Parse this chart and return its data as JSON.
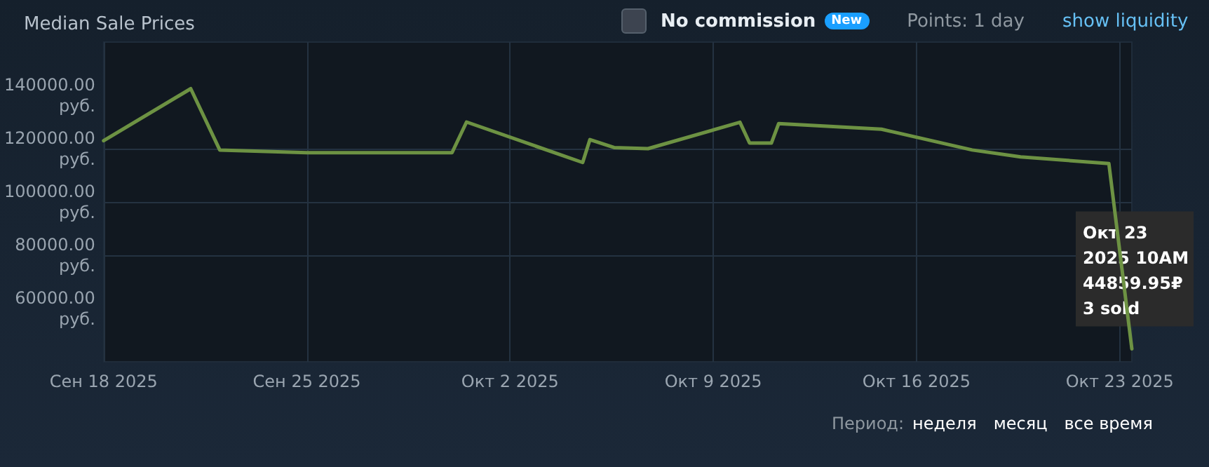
{
  "chart_data": {
    "type": "line",
    "title": "Median Sale Prices",
    "x": [
      "2025-09-18T00:00",
      "2025-09-21T00:00",
      "2025-09-22T00:00",
      "2025-09-25T00:00",
      "2025-09-30T00:00",
      "2025-09-30T12:00",
      "2025-10-04T12:00",
      "2025-10-04T18:00",
      "2025-10-05T14:00",
      "2025-10-06T18:00",
      "2025-10-09T22:00",
      "2025-10-10T06:00",
      "2025-10-11T00:00",
      "2025-10-11T06:00",
      "2025-10-14T19:00",
      "2025-10-17T22:00",
      "2025-10-19T14:00",
      "2025-10-22T15:00",
      "2025-10-23T10:00"
    ],
    "series": [
      {
        "color": "#6d9243",
        "values": [
          123000,
          142500,
          119500,
          118500,
          118500,
          130000,
          114800,
          123400,
          120400,
          120000,
          129900,
          122100,
          122100,
          129400,
          127300,
          119500,
          116900,
          114400,
          44859.95
        ]
      }
    ],
    "xlim": [
      "2025-09-18T00:00",
      "2025-10-23T10:00"
    ],
    "xticks": [
      {
        "value": "2025-09-18",
        "label": "Сен 18 2025"
      },
      {
        "value": "2025-09-25",
        "label": "Сен 25 2025"
      },
      {
        "value": "2025-10-02",
        "label": "Окт 2 2025"
      },
      {
        "value": "2025-10-09",
        "label": "Окт 9 2025"
      },
      {
        "value": "2025-10-16",
        "label": "Окт 16 2025"
      },
      {
        "value": "2025-10-23",
        "label": "Окт 23 2025"
      }
    ],
    "ylim": [
      40000,
      160000
    ],
    "yticks": [
      {
        "value": 60000,
        "label": "60000.00 руб."
      },
      {
        "value": 80000,
        "label": "80000.00 руб."
      },
      {
        "value": 100000,
        "label": "100000.00 руб."
      },
      {
        "value": 120000,
        "label": "120000.00 руб."
      },
      {
        "value": 140000,
        "label": "140000.00 руб."
      }
    ],
    "grid": true,
    "marker": "none",
    "line_style": "solid",
    "annotations": [
      "No commission",
      "New",
      "Points: 1 day",
      "show liquidity",
      "Период:",
      "неделя",
      "месяц",
      "все время",
      {
        "text": "Окт 23\n2025 10AM\n44859.95₽\n3 sold",
        "x": "2025-10-23T10:00",
        "y": 44859.95
      }
    ]
  }
}
